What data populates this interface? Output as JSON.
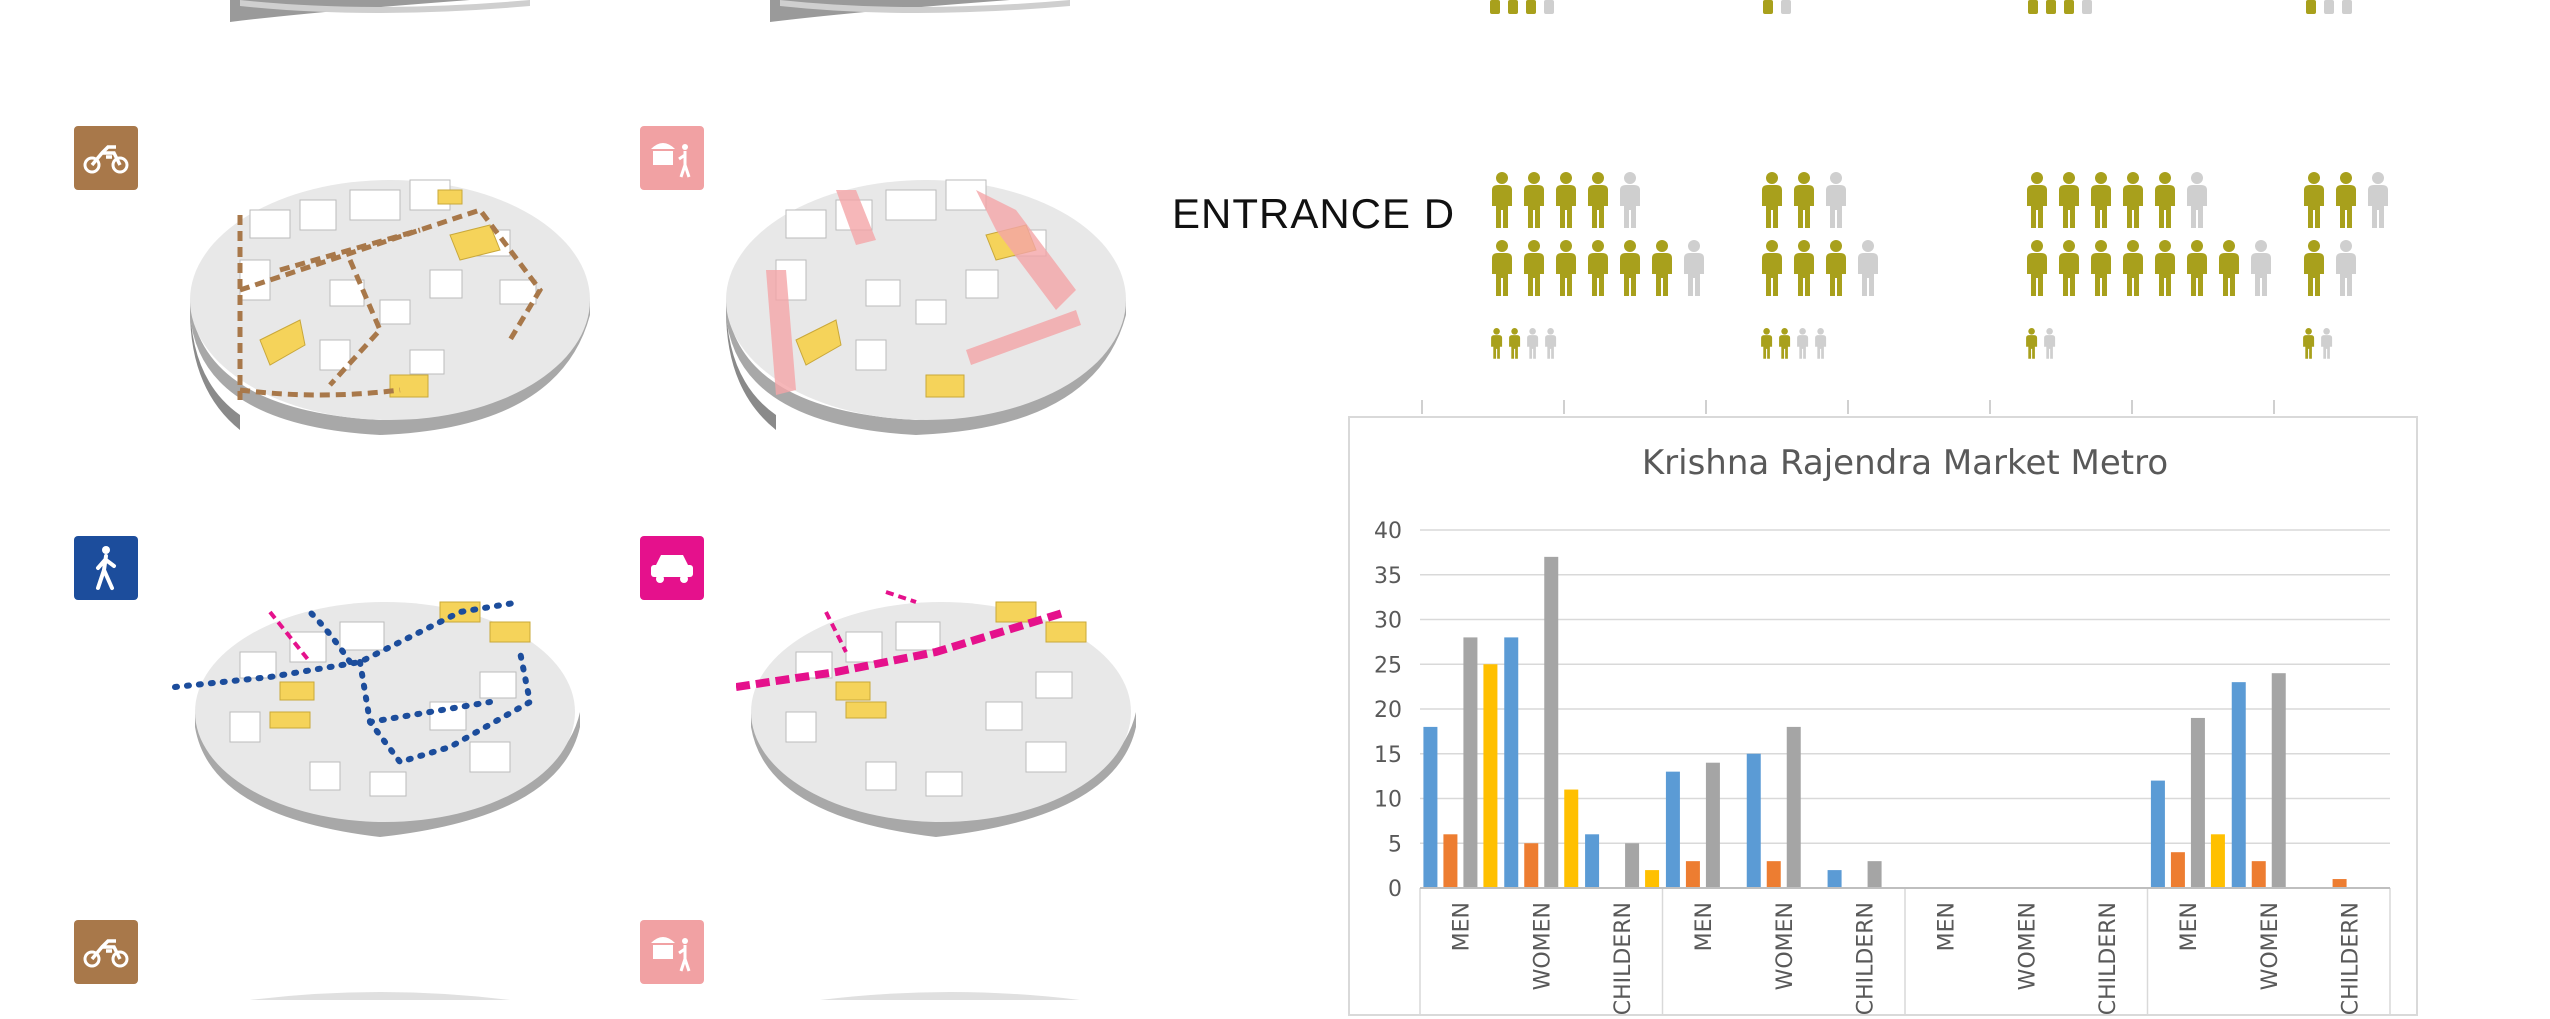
{
  "entrance": {
    "label": "ENTRANCE D"
  },
  "icons": [
    {
      "name": "motorbike-icon",
      "color": "#a8784a"
    },
    {
      "name": "street-vendor-icon",
      "color": "#f1a1a3"
    },
    {
      "name": "pedestrian-icon",
      "color": "#1c4d9c"
    },
    {
      "name": "car-icon",
      "color": "#e5118c"
    }
  ],
  "people_colors": {
    "active": "#a8a01c",
    "inactive": "#cfcfcf"
  },
  "people_groups": [
    {
      "rows": [
        {
          "active": 4,
          "total": 5
        },
        {
          "active": 6,
          "total": 7
        },
        {
          "active": 2,
          "total": 4,
          "small": true
        }
      ]
    },
    {
      "rows": [
        {
          "active": 2,
          "total": 3
        },
        {
          "active": 3,
          "total": 4
        },
        {
          "active": 2,
          "total": 4,
          "small": true
        }
      ]
    },
    {
      "rows": [
        {
          "active": 5,
          "total": 6
        },
        {
          "active": 7,
          "total": 8
        },
        {
          "active": 1,
          "total": 2,
          "small": true
        }
      ]
    },
    {
      "rows": [
        {
          "active": 2,
          "total": 3
        },
        {
          "active": 1,
          "total": 2
        },
        {
          "active": 1,
          "total": 2,
          "small": true
        }
      ]
    }
  ],
  "chart_data": {
    "type": "bar",
    "title": "Krishna Rajendra Market Metro",
    "xlabel": "",
    "ylabel": "",
    "ylim": [
      0,
      40
    ],
    "yticks": [
      0,
      5,
      10,
      15,
      20,
      25,
      30,
      35,
      40
    ],
    "grid": true,
    "categories": [
      "MEN",
      "WOMEN",
      "CHILDERN",
      "MEN",
      "WOMEN",
      "CHILDERN",
      "MEN",
      "WOMEN",
      "CHILDERN",
      "MEN",
      "WOMEN",
      "CHILDERN"
    ],
    "series": [
      {
        "color": "#5b9bd5",
        "values": [
          18,
          28,
          6,
          13,
          15,
          2,
          0,
          0,
          0,
          12,
          23,
          0
        ]
      },
      {
        "color": "#ed7d31",
        "values": [
          6,
          5,
          0,
          3,
          3,
          0,
          0,
          0,
          0,
          4,
          3,
          1
        ]
      },
      {
        "color": "#a5a5a5",
        "values": [
          28,
          37,
          5,
          14,
          18,
          3,
          0,
          0,
          0,
          19,
          24,
          0
        ]
      },
      {
        "color": "#ffc000",
        "values": [
          25,
          11,
          2,
          0,
          0,
          0,
          0,
          0,
          0,
          6,
          0,
          0
        ]
      }
    ]
  }
}
